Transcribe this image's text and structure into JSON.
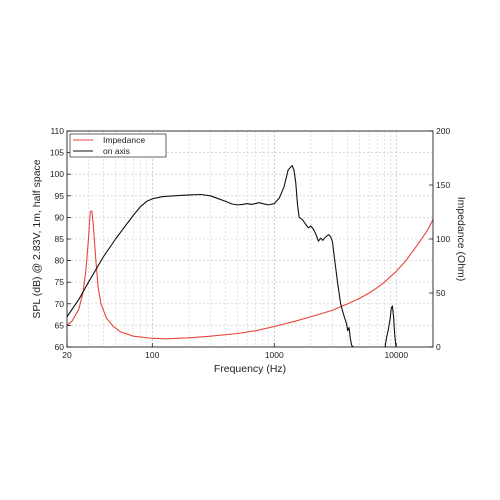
{
  "chart_data": {
    "type": "line",
    "xlabel": "Frequency (Hz)",
    "ylabel": "SPL (dB) @ 2.83V, 1m, half space",
    "y2label": "Impedance (Ohm)",
    "xscale": "log",
    "xlim": [
      20,
      20000
    ],
    "ylim": [
      60,
      110
    ],
    "y2lim": [
      0,
      200
    ],
    "grid": true,
    "legend_position": "top-left",
    "x_ticks": [
      {
        "value": 20,
        "label": "20"
      },
      {
        "value": 100,
        "label": "100"
      },
      {
        "value": 1000,
        "label": "1000"
      },
      {
        "value": 10000,
        "label": "10000"
      }
    ],
    "y_ticks": [
      {
        "value": 60,
        "label": "60"
      },
      {
        "value": 65,
        "label": "65"
      },
      {
        "value": 70,
        "label": "70"
      },
      {
        "value": 75,
        "label": "75"
      },
      {
        "value": 80,
        "label": "80"
      },
      {
        "value": 85,
        "label": "85"
      },
      {
        "value": 90,
        "label": "90"
      },
      {
        "value": 95,
        "label": "95"
      },
      {
        "value": 100,
        "label": "100"
      },
      {
        "value": 105,
        "label": "105"
      },
      {
        "value": 110,
        "label": "110"
      }
    ],
    "y2_ticks": [
      {
        "value": 0,
        "label": "0"
      },
      {
        "value": 50,
        "label": "50"
      },
      {
        "value": 100,
        "label": "100"
      },
      {
        "value": 150,
        "label": "150"
      },
      {
        "value": 200,
        "label": "200"
      }
    ],
    "series": [
      {
        "name": "Impedance",
        "color": "#e8453c",
        "axis": "right",
        "points": [
          [
            20,
            20
          ],
          [
            22,
            24
          ],
          [
            25,
            35
          ],
          [
            27,
            50
          ],
          [
            28.5,
            70
          ],
          [
            30,
            100
          ],
          [
            31,
            125
          ],
          [
            32,
            126
          ],
          [
            33,
            110
          ],
          [
            34.5,
            80
          ],
          [
            36,
            55
          ],
          [
            38,
            40
          ],
          [
            42,
            27
          ],
          [
            48,
            19
          ],
          [
            55,
            14
          ],
          [
            70,
            10
          ],
          [
            100,
            8
          ],
          [
            130,
            7.6
          ],
          [
            200,
            8.5
          ],
          [
            300,
            10
          ],
          [
            500,
            12.5
          ],
          [
            700,
            15
          ],
          [
            1000,
            19
          ],
          [
            1500,
            24
          ],
          [
            2000,
            28
          ],
          [
            3000,
            34
          ],
          [
            4000,
            40
          ],
          [
            5000,
            45
          ],
          [
            6000,
            50
          ],
          [
            7000,
            55
          ],
          [
            8000,
            60
          ],
          [
            10000,
            70
          ],
          [
            12000,
            80
          ],
          [
            15000,
            95
          ],
          [
            18000,
            108
          ],
          [
            20000,
            118
          ]
        ]
      },
      {
        "name": "on axis",
        "color": "#111111",
        "axis": "left",
        "points": [
          [
            20,
            67
          ],
          [
            25,
            71
          ],
          [
            30,
            75
          ],
          [
            40,
            81
          ],
          [
            50,
            85
          ],
          [
            60,
            88
          ],
          [
            70,
            90.5
          ],
          [
            80,
            92.5
          ],
          [
            90,
            93.7
          ],
          [
            100,
            94.3
          ],
          [
            120,
            94.8
          ],
          [
            150,
            95.0
          ],
          [
            200,
            95.2
          ],
          [
            250,
            95.3
          ],
          [
            300,
            95.0
          ],
          [
            350,
            94.3
          ],
          [
            400,
            93.7
          ],
          [
            450,
            93.1
          ],
          [
            500,
            92.9
          ],
          [
            550,
            93.0
          ],
          [
            600,
            93.2
          ],
          [
            650,
            93.0
          ],
          [
            700,
            93.2
          ],
          [
            750,
            93.4
          ],
          [
            800,
            93.2
          ],
          [
            900,
            92.9
          ],
          [
            1000,
            93.2
          ],
          [
            1100,
            94.5
          ],
          [
            1200,
            97
          ],
          [
            1300,
            101
          ],
          [
            1400,
            102
          ],
          [
            1450,
            101
          ],
          [
            1500,
            98
          ],
          [
            1550,
            93
          ],
          [
            1600,
            90
          ],
          [
            1700,
            89.5
          ],
          [
            1800,
            88.5
          ],
          [
            1900,
            87.6
          ],
          [
            2000,
            88
          ],
          [
            2100,
            87.2
          ],
          [
            2200,
            86
          ],
          [
            2300,
            84.5
          ],
          [
            2400,
            85.2
          ],
          [
            2500,
            84.7
          ],
          [
            2600,
            85.3
          ],
          [
            2700,
            85.7
          ],
          [
            2800,
            86
          ],
          [
            2900,
            85.5
          ],
          [
            3000,
            84.3
          ],
          [
            3100,
            81
          ],
          [
            3300,
            75
          ],
          [
            3500,
            70
          ],
          [
            3700,
            67.5
          ],
          [
            3900,
            65.5
          ],
          [
            4000,
            63.8
          ],
          [
            4100,
            64.5
          ],
          [
            4200,
            62
          ],
          [
            4300,
            60.5
          ],
          [
            4350,
            60.2
          ],
          [
            4450,
            60
          ],
          null,
          [
            8100,
            60
          ],
          [
            8300,
            62
          ],
          [
            8600,
            64
          ],
          [
            8900,
            66.5
          ],
          [
            9100,
            69
          ],
          [
            9300,
            69.5
          ],
          [
            9500,
            67
          ],
          [
            9700,
            63
          ],
          [
            9900,
            60.5
          ],
          [
            10000,
            60
          ]
        ]
      }
    ]
  }
}
